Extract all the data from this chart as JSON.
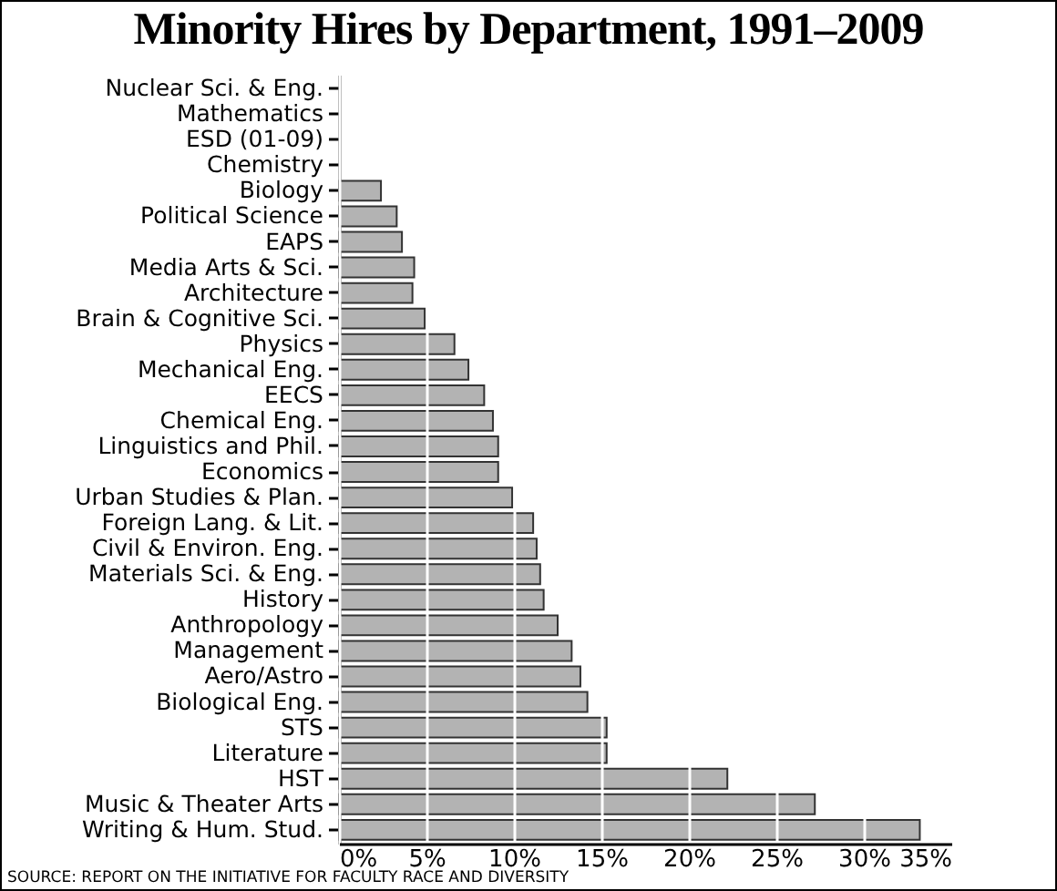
{
  "chart_data": {
    "type": "bar",
    "orientation": "horizontal",
    "title": "Minority Hires by Department, 1991–2009",
    "categories": [
      "Nuclear Sci. & Eng.",
      "Mathematics",
      "ESD (01-09)",
      "Chemistry",
      "Biology",
      "Political Science",
      "EAPS",
      "Media Arts & Sci.",
      "Architecture",
      "Brain & Cognitive Sci.",
      "Physics",
      "Mechanical Eng.",
      "EECS",
      "Chemical Eng.",
      "Linguistics and Phil.",
      "Economics",
      "Urban Studies & Plan.",
      "Foreign Lang. & Lit.",
      "Civil & Environ. Eng.",
      "Materials Sci. & Eng.",
      "History",
      "Anthropology",
      "Management",
      "Aero/Astro",
      "Biological Eng.",
      "STS",
      "Literature",
      "HST",
      "Music & Theater Arts",
      "Writing & Hum. Stud."
    ],
    "values": [
      0,
      0,
      0,
      0,
      2.4,
      3.3,
      3.6,
      4.3,
      4.2,
      4.9,
      6.6,
      7.4,
      8.3,
      8.8,
      9.1,
      9.1,
      9.9,
      11.1,
      11.3,
      11.5,
      11.7,
      12.5,
      13.3,
      13.8,
      14.2,
      15.3,
      15.3,
      22.2,
      27.2,
      33.2
    ],
    "color": "#b3b3b3",
    "xlim": [
      0,
      35
    ],
    "xticks": [
      {
        "value": 0,
        "label": "0%"
      },
      {
        "value": 5,
        "label": "5%"
      },
      {
        "value": 10,
        "label": "10%"
      },
      {
        "value": 15,
        "label": "15%"
      },
      {
        "value": 20,
        "label": "20%"
      },
      {
        "value": 25,
        "label": "25%"
      },
      {
        "value": 30,
        "label": "30%"
      },
      {
        "value": 35,
        "label": "35%"
      }
    ],
    "grid": "x",
    "annotations": [
      "SOURCE: REPORT ON THE INITIATIVE FOR FACULTY RACE AND DIVERSITY"
    ]
  }
}
